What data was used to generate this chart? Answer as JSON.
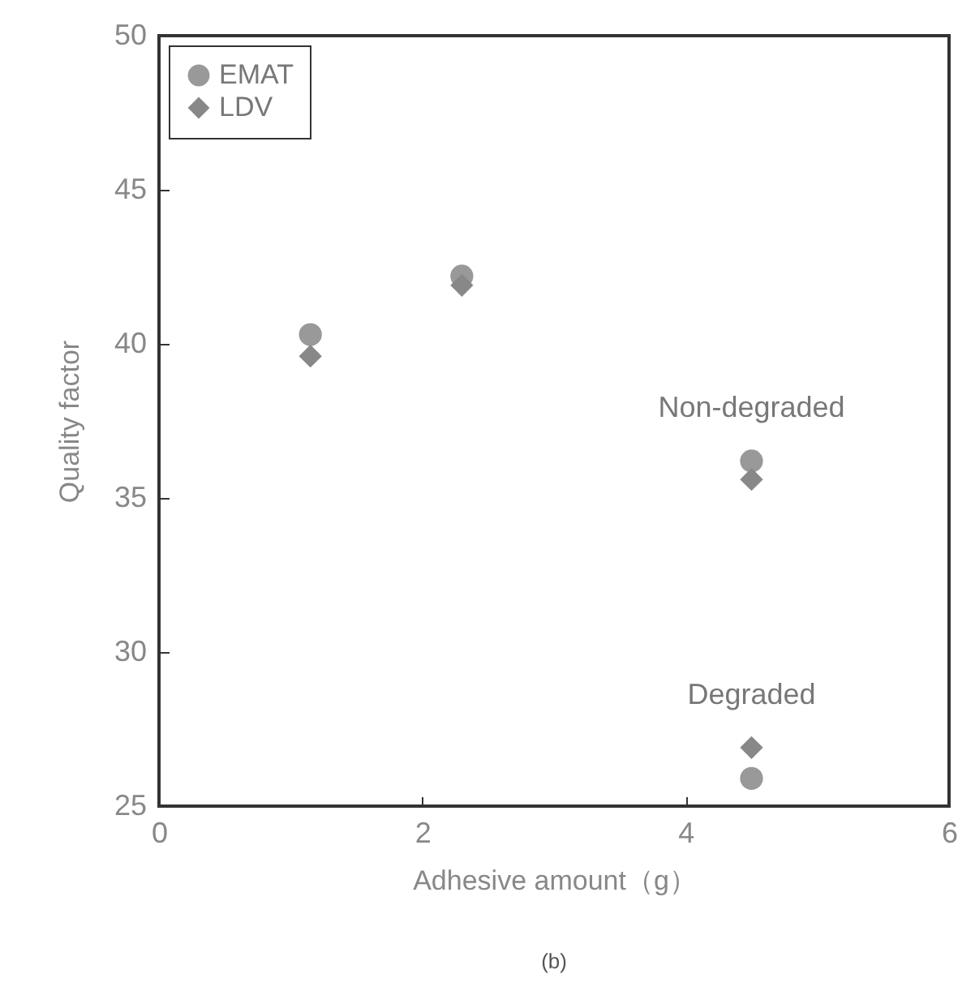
{
  "chart_data": {
    "type": "scatter",
    "xlabel": "Adhesive amount（g）",
    "ylabel": "Quality factor",
    "x": [
      1.15,
      2.3,
      4.5,
      4.5
    ],
    "series": [
      {
        "name": "EMAT",
        "color": "#999999",
        "marker": "circle",
        "values": [
          40.3,
          42.2,
          36.2,
          25.9
        ]
      },
      {
        "name": "LDV",
        "color": "#888888",
        "marker": "diamond",
        "values": [
          39.6,
          41.9,
          35.6,
          26.9
        ]
      }
    ],
    "xlim": [
      0,
      6
    ],
    "xticks": [
      0,
      2,
      4,
      6
    ],
    "ylim": [
      25,
      50
    ],
    "yticks": [
      25,
      30,
      35,
      40,
      45,
      50
    ],
    "grid": false,
    "legend": "top left",
    "annotations": [
      {
        "text": "Non-degraded",
        "x": 4.5,
        "y": 36.2
      },
      {
        "text": "Degraded",
        "x": 4.5,
        "y": 26.9
      },
      "(b)"
    ]
  }
}
